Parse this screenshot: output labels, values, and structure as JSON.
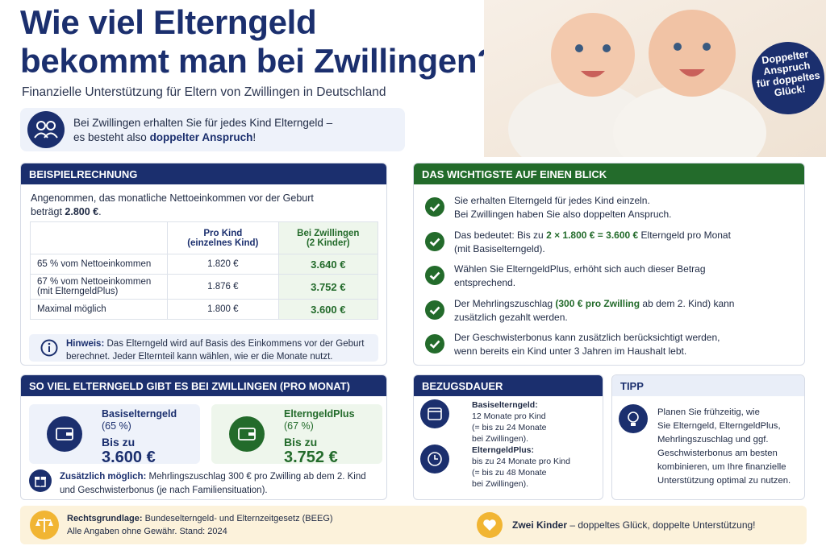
{
  "header": {
    "title": [
      "Wie viel Elterngeld",
      "bekommt man bei Zwillingen?"
    ],
    "subtitle": "Finanzielle Unterstützung für Eltern von Zwillingen in Deutschland"
  },
  "badge": [
    "Doppelter",
    "Anspruch",
    "für doppeltes",
    "Glück!"
  ],
  "intro": [
    "Bei Zwillingen erhalten Sie für jedes Kind Elterngeld –",
    [
      "es besteht also ",
      {
        "strong": "doppelter Anspruch"
      },
      "!"
    ]
  ],
  "example": {
    "heading": "BEISPIELRECHNUNG",
    "text": [
      "Angenommen, das monatliche Nettoeinkommen vor der Geburt",
      [
        "beträgt ",
        {
          "strong": "2.800 €"
        },
        "."
      ]
    ],
    "table": {
      "columns": [
        [
          "Pro Kind",
          "(einzelnes Kind)"
        ],
        [
          "Bei Zwillingen",
          "(2 Kinder)"
        ]
      ],
      "rows": [
        {
          "label": [
            "65 % vom Nettoeinkommen"
          ],
          "per_child": "1.820 €",
          "twins": "3.640 €"
        },
        {
          "label": [
            "67 % vom Nettoeinkommen",
            "(mit ElterngeldPlus)"
          ],
          "per_child": "1.876 €",
          "twins": "3.752 €"
        },
        {
          "label": [
            "Maximal möglich"
          ],
          "per_child": "1.800 €",
          "twins": "3.600 €"
        }
      ]
    },
    "note": [
      [
        {
          "strong": "Hinweis:"
        },
        " Das Elterngeld wird auf Basis des Einkommens vor der Geburt"
      ],
      "berechnet. Jeder Elternteil kann wählen, wie er die Monate nutzt."
    ]
  },
  "key_points": {
    "heading": "DAS WICHTIGSTE AUF EINEN BLICK",
    "items": [
      [
        "Sie erhalten Elterngeld für jedes Kind einzeln.",
        "Bei Zwillingen haben Sie also doppelten Anspruch."
      ],
      [
        [
          "Das bedeutet: Bis zu ",
          {
            "strong": "2 × 1.800 € = 3.600 €"
          },
          " Elterngeld pro Monat"
        ],
        "(mit Basiselterngeld)."
      ],
      [
        "Wählen Sie ElterngeldPlus, erhöht sich auch dieser Betrag",
        "entsprechend."
      ],
      [
        [
          "Der Mehrlingszuschlag ",
          {
            "strong": "(300 € pro Zwilling"
          },
          " ab dem 2. Kind) kann"
        ],
        "zusätzlich gezahlt werden."
      ],
      [
        "Der Geschwisterbonus kann zusätzlich berücksichtigt werden,",
        "wenn bereits ein Kind unter 3 Jahren im Haushalt lebt."
      ]
    ]
  },
  "amounts": {
    "heading": "SO VIEL ELTERNGELD GIBT ES BEI ZWILLINGEN (PRO MONAT)",
    "boxes": [
      {
        "name": "Basiselterngeld",
        "sub": "(65 %)",
        "prefix": "Bis zu",
        "amount": "3.600 €"
      },
      {
        "name": "ElterngeldPlus",
        "sub": "(67 %)",
        "prefix": "Bis zu",
        "amount": "3.752 €"
      }
    ],
    "extra": [
      [
        {
          "strong": "Zusätzlich möglich:"
        },
        " Mehrlingszuschlag 300 € pro Zwilling ab dem 2. Kind"
      ],
      "und Geschwisterbonus (je nach Familiensituation)."
    ]
  },
  "duration": {
    "heading": "BEZUGSDAUER",
    "items": [
      {
        "title": "Basiselterngeld:",
        "lines": [
          "12 Monate pro Kind",
          "(= bis zu 24 Monate",
          "bei Zwillingen)."
        ]
      },
      {
        "title": "ElterngeldPlus:",
        "lines": [
          "bis zu 24 Monate pro Kind",
          "(= bis zu 48 Monate",
          "bei Zwillingen)."
        ]
      }
    ]
  },
  "tip": {
    "heading": "TIPP",
    "text": [
      "Planen Sie frühzeitig, wie",
      "Sie Elterngeld, ElterngeldPlus,",
      "Mehrlingszuschlag und ggf.",
      "Geschwisterbonus am besten",
      "kombinieren, um Ihre finanzielle",
      "Unterstützung optimal zu nutzen."
    ]
  },
  "footer": {
    "legal": [
      [
        {
          "strong": "Rechtsgrundlage:"
        },
        " Bundeselterngeld- und Elternzeitgesetz (BEEG)"
      ],
      "Alle Angaben ohne Gewähr. Stand: 2024"
    ],
    "slogan": [
      [
        {
          "strong": "Zwei Kinder"
        },
        " – doppeltes Glück, doppelte Unterstützung!"
      ]
    ]
  }
}
